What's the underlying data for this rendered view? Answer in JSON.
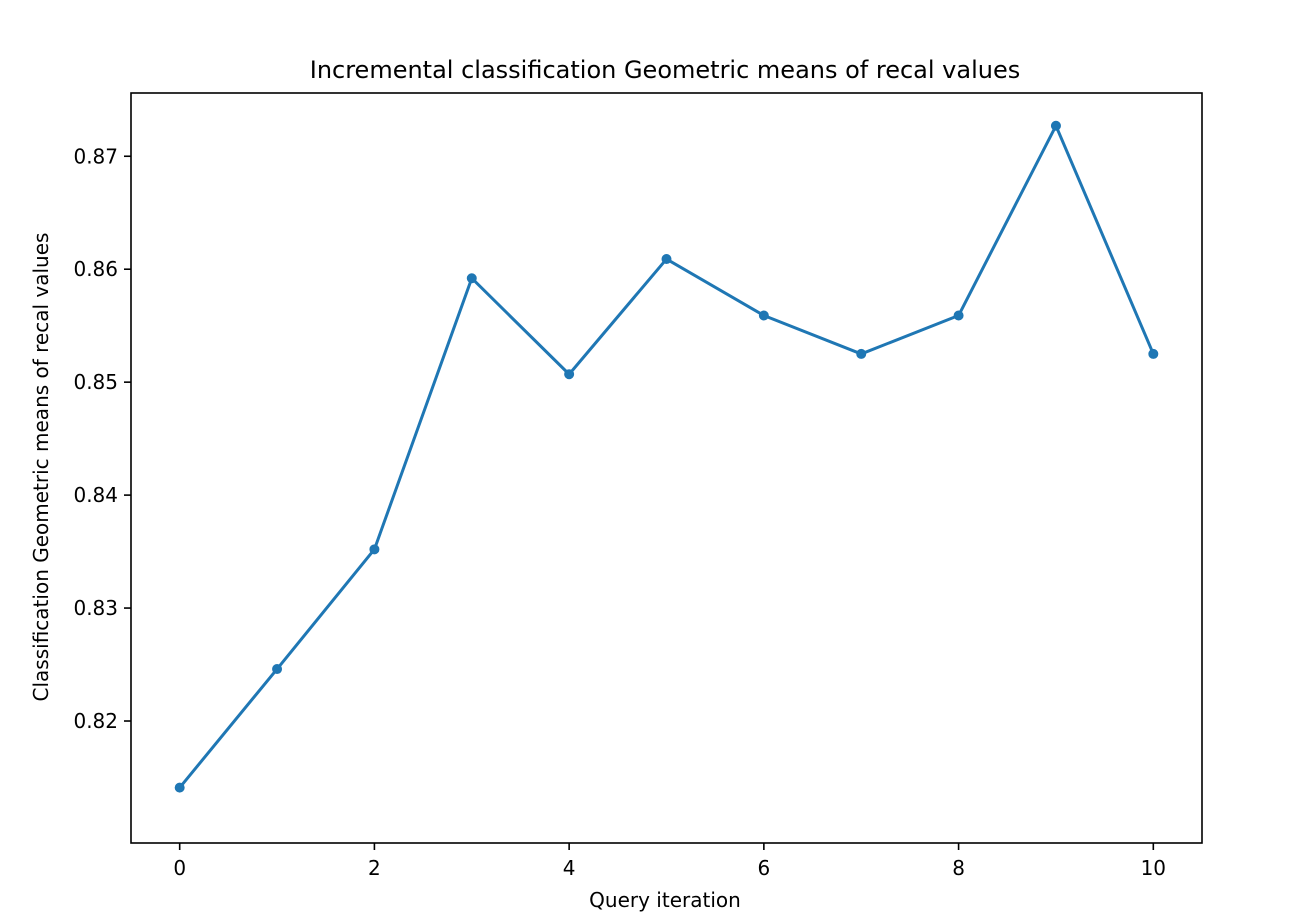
{
  "chart_data": {
    "type": "line",
    "title": "Incremental classification Geometric means of recal values",
    "xlabel": "Query iteration",
    "ylabel": "Classification Geometric means of recal values",
    "x": [
      0,
      1,
      2,
      3,
      4,
      5,
      6,
      7,
      8,
      9,
      10
    ],
    "series": [
      {
        "values": [
          0.8141,
          0.8246,
          0.8352,
          0.8592,
          0.8507,
          0.8609,
          0.8559,
          0.8525,
          0.8559,
          0.8727,
          0.8525
        ]
      }
    ],
    "xlim": [
      -0.5,
      10.5
    ],
    "ylim": [
      0.8092,
      0.8756
    ],
    "x_ticks": [
      0,
      2,
      4,
      6,
      8,
      10
    ],
    "x_tick_labels": [
      "0",
      "2",
      "4",
      "6",
      "8",
      "10"
    ],
    "y_ticks": [
      0.82,
      0.83,
      0.84,
      0.85,
      0.86,
      0.87
    ],
    "y_tick_labels": [
      "0.82",
      "0.83",
      "0.84",
      "0.85",
      "0.86",
      "0.87"
    ],
    "grid": false,
    "legend": false,
    "line_color": "#1f77b4",
    "marker": "circle"
  }
}
